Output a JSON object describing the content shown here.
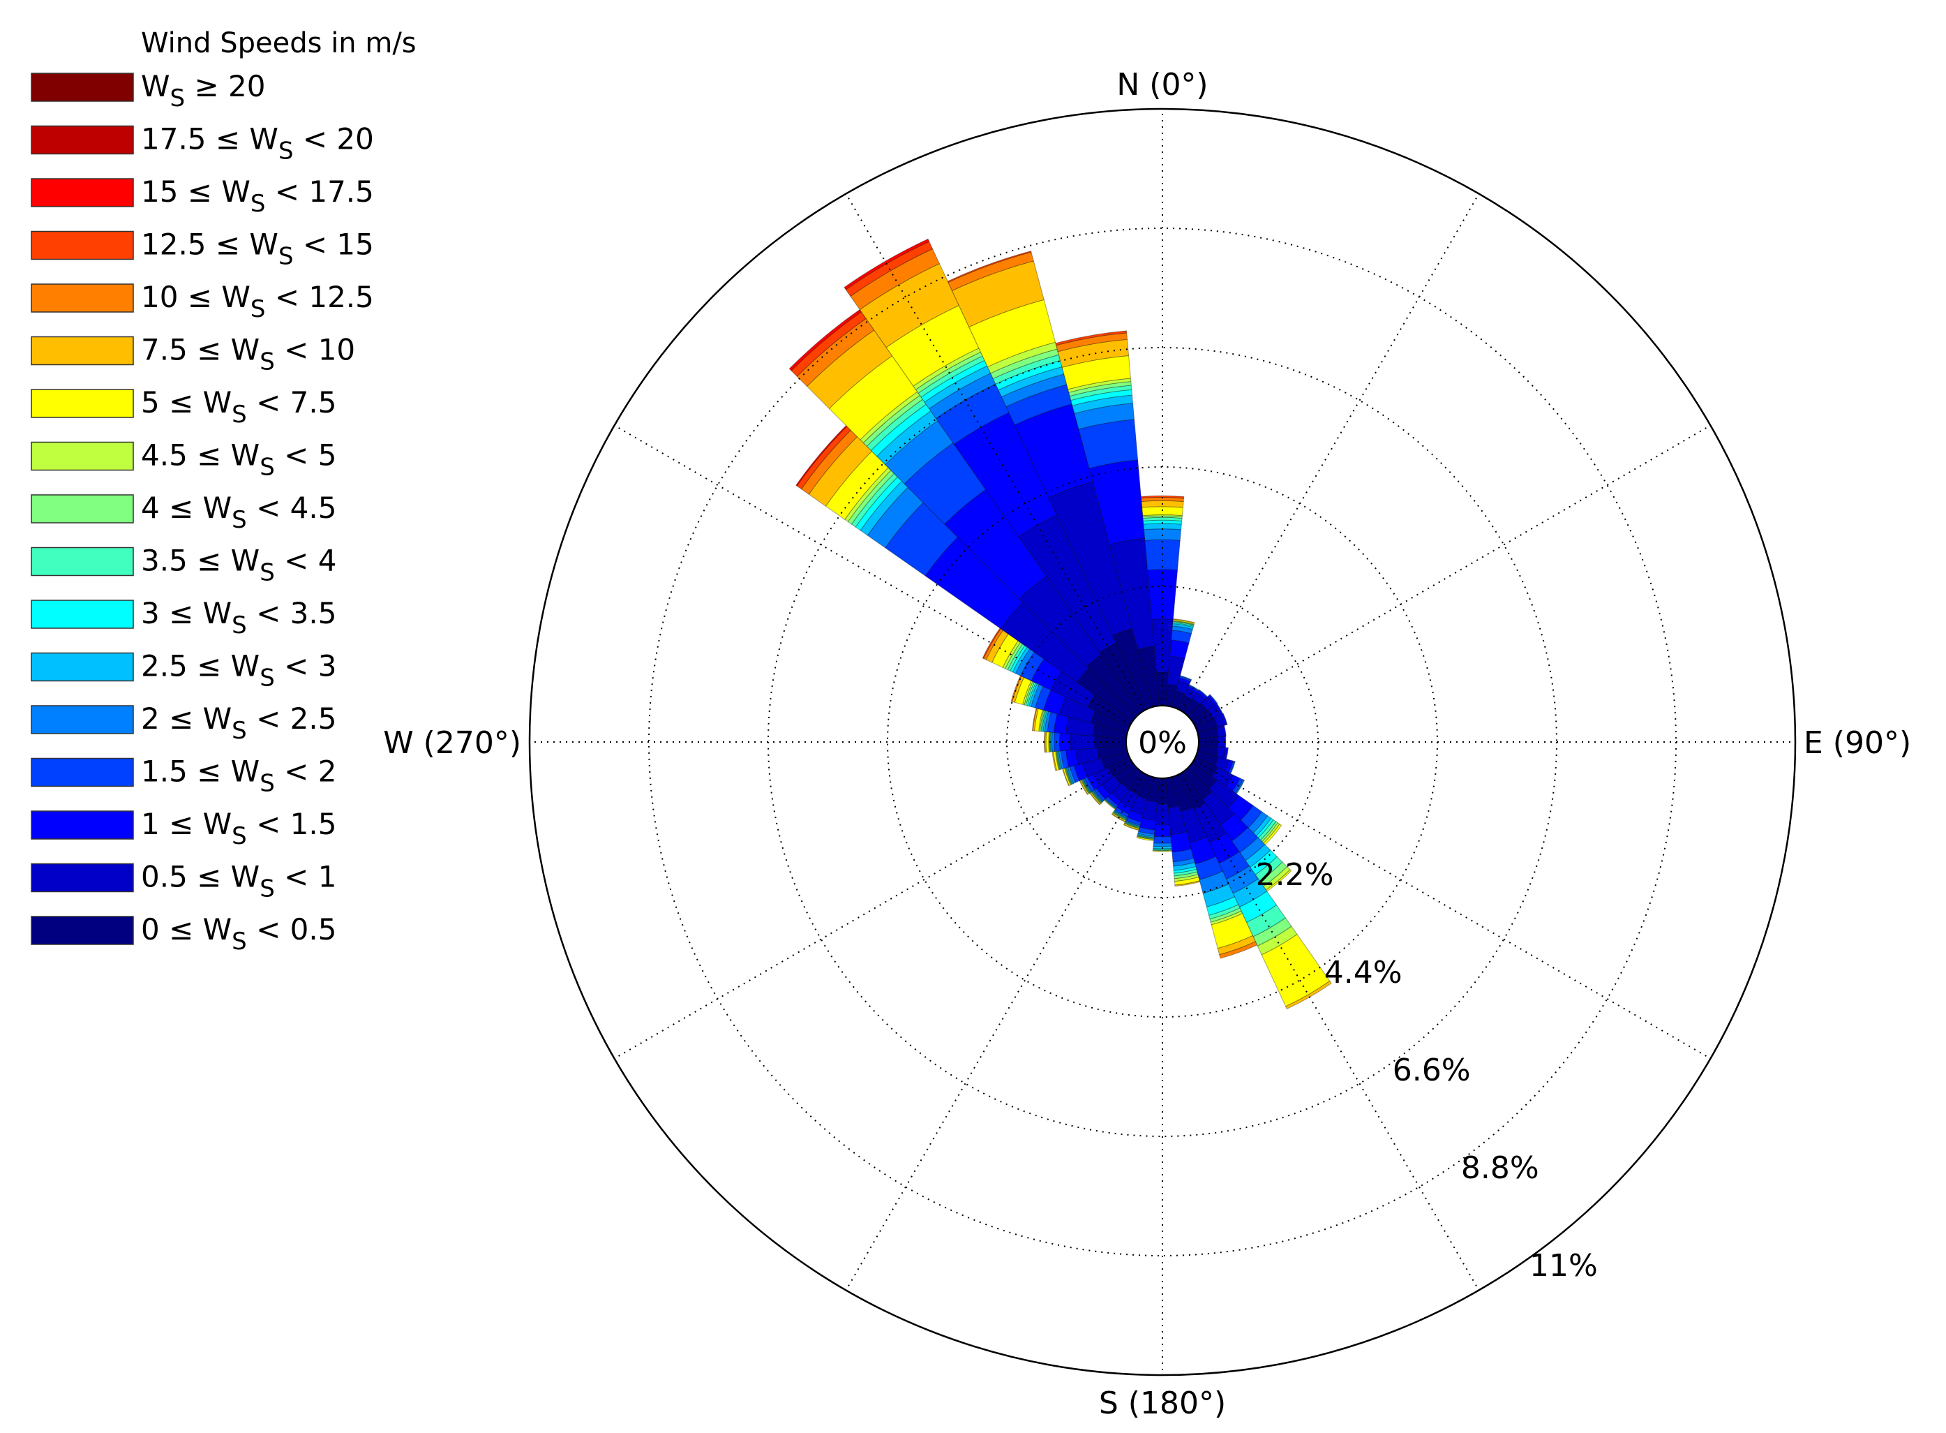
{
  "chart_data": {
    "type": "windrose",
    "legend_title": "Wind Speeds in m/s",
    "legend_placement": "top-left",
    "radial_unit": "%",
    "radial_max": 11,
    "rings": [
      2.2,
      4.4,
      6.6,
      8.8,
      11
    ],
    "ring_labels": [
      "2.2%",
      "4.4%",
      "6.6%",
      "8.8%",
      "11%"
    ],
    "center_label": "0%",
    "direction_labels": [
      {
        "angle": 0,
        "label": "N (0°)"
      },
      {
        "angle": 90,
        "label": "E (90°)"
      },
      {
        "angle": 180,
        "label": "S (180°)"
      },
      {
        "angle": 270,
        "label": "W (270°)"
      }
    ],
    "sector_width_deg": 10,
    "bins": [
      {
        "label": "0 ≤ W_S < 0.5",
        "color": "#000080"
      },
      {
        "label": "0.5 ≤ W_S < 1",
        "color": "#0000c8"
      },
      {
        "label": "1 ≤ W_S < 1.5",
        "color": "#0000ff"
      },
      {
        "label": "1.5 ≤ W_S < 2",
        "color": "#0040ff"
      },
      {
        "label": "2 ≤ W_S < 2.5",
        "color": "#0080ff"
      },
      {
        "label": "2.5 ≤ W_S < 3",
        "color": "#00c0ff"
      },
      {
        "label": "3 ≤ W_S < 3.5",
        "color": "#00ffff"
      },
      {
        "label": "3.5 ≤ W_S < 4",
        "color": "#40ffbf"
      },
      {
        "label": "4 ≤ W_S < 4.5",
        "color": "#80ff80"
      },
      {
        "label": "4.5 ≤ W_S < 5",
        "color": "#bfff40"
      },
      {
        "label": "5 ≤ W_S < 7.5",
        "color": "#ffff00"
      },
      {
        "label": "7.5 ≤ W_S < 10",
        "color": "#ffbf00"
      },
      {
        "label": "10 ≤ W_S < 12.5",
        "color": "#ff8000"
      },
      {
        "label": "12.5 ≤ W_S < 15",
        "color": "#ff4000"
      },
      {
        "label": "15 ≤ W_S < 17.5",
        "color": "#ff0000"
      },
      {
        "label": "17.5 ≤ W_S < 20",
        "color": "#bf0000"
      },
      {
        "label": "W_S ≥ 20",
        "color": "#800000"
      }
    ],
    "sectors": [
      {
        "direction": 0,
        "values": [
          0.62,
          0.98,
          0.91,
          0.55,
          0.2,
          0.1,
          0.06,
          0.05,
          0.03,
          0.02,
          0.15,
          0.11,
          0.06,
          0.03,
          0.0,
          0.0,
          0.0
        ]
      },
      {
        "direction": 10,
        "values": [
          0.4,
          0.52,
          0.3,
          0.18,
          0.08,
          0.04,
          0.02,
          0.02,
          0.01,
          0.01,
          0.02,
          0.01,
          0.0,
          0.0,
          0.0,
          0.0,
          0.0
        ]
      },
      {
        "direction": 20,
        "values": [
          0.31,
          0.19,
          0.06,
          0.03,
          0.01,
          0.0,
          0.0,
          0.0,
          0.0,
          0.0,
          0.0,
          0.0,
          0.0,
          0.0,
          0.0,
          0.0,
          0.0
        ]
      },
      {
        "direction": 30,
        "values": [
          0.28,
          0.14,
          0.05,
          0.02,
          0.01,
          0.0,
          0.0,
          0.0,
          0.0,
          0.0,
          0.0,
          0.0,
          0.0,
          0.0,
          0.0,
          0.0,
          0.0
        ]
      },
      {
        "direction": 40,
        "values": [
          0.3,
          0.14,
          0.05,
          0.02,
          0.0,
          0.0,
          0.0,
          0.0,
          0.0,
          0.0,
          0.0,
          0.0,
          0.0,
          0.0,
          0.0,
          0.0,
          0.0
        ]
      },
      {
        "direction": 50,
        "values": [
          0.34,
          0.16,
          0.05,
          0.02,
          0.0,
          0.0,
          0.0,
          0.0,
          0.0,
          0.0,
          0.0,
          0.0,
          0.0,
          0.0,
          0.0,
          0.0,
          0.0
        ]
      },
      {
        "direction": 60,
        "values": [
          0.36,
          0.15,
          0.04,
          0.01,
          0.0,
          0.0,
          0.0,
          0.0,
          0.0,
          0.0,
          0.0,
          0.0,
          0.0,
          0.0,
          0.0,
          0.0,
          0.0
        ]
      },
      {
        "direction": 70,
        "values": [
          0.38,
          0.14,
          0.04,
          0.01,
          0.0,
          0.0,
          0.0,
          0.0,
          0.0,
          0.0,
          0.0,
          0.0,
          0.0,
          0.0,
          0.0,
          0.0,
          0.0
        ]
      },
      {
        "direction": 80,
        "values": [
          0.36,
          0.12,
          0.03,
          0.0,
          0.0,
          0.0,
          0.0,
          0.0,
          0.0,
          0.0,
          0.0,
          0.0,
          0.0,
          0.0,
          0.0,
          0.0,
          0.0
        ]
      },
      {
        "direction": 90,
        "values": [
          0.35,
          0.12,
          0.03,
          0.0,
          0.0,
          0.0,
          0.0,
          0.0,
          0.0,
          0.0,
          0.0,
          0.0,
          0.0,
          0.0,
          0.0,
          0.0,
          0.0
        ]
      },
      {
        "direction": 100,
        "values": [
          0.36,
          0.14,
          0.04,
          0.01,
          0.0,
          0.0,
          0.0,
          0.0,
          0.0,
          0.0,
          0.0,
          0.0,
          0.0,
          0.0,
          0.0,
          0.0,
          0.0
        ]
      },
      {
        "direction": 110,
        "values": [
          0.4,
          0.2,
          0.08,
          0.03,
          0.01,
          0.0,
          0.0,
          0.0,
          0.0,
          0.0,
          0.0,
          0.0,
          0.0,
          0.0,
          0.0,
          0.0,
          0.0
        ]
      },
      {
        "direction": 120,
        "values": [
          0.45,
          0.32,
          0.14,
          0.06,
          0.02,
          0.01,
          0.0,
          0.0,
          0.0,
          0.0,
          0.0,
          0.0,
          0.0,
          0.0,
          0.0,
          0.0,
          0.0
        ]
      },
      {
        "direction": 130,
        "values": [
          0.55,
          0.5,
          0.32,
          0.2,
          0.13,
          0.08,
          0.05,
          0.06,
          0.04,
          0.04,
          0.04,
          0.0,
          0.0,
          0.0,
          0.0,
          0.0,
          0.0
        ]
      },
      {
        "direction": 140,
        "values": [
          0.62,
          0.58,
          0.36,
          0.26,
          0.18,
          0.15,
          0.17,
          0.14,
          0.12,
          0.08,
          0.03,
          0.0,
          0.0,
          0.0,
          0.0,
          0.0,
          0.0
        ]
      },
      {
        "direction": 150,
        "values": [
          0.7,
          0.68,
          0.42,
          0.32,
          0.29,
          0.28,
          0.31,
          0.29,
          0.19,
          0.18,
          1.05,
          0.05,
          0.0,
          0.0,
          0.0,
          0.0,
          0.0
        ]
      },
      {
        "direction": 160,
        "values": [
          0.66,
          0.6,
          0.4,
          0.3,
          0.26,
          0.26,
          0.16,
          0.07,
          0.06,
          0.05,
          0.45,
          0.12,
          0.07,
          0.0,
          0.0,
          0.0,
          0.0
        ]
      },
      {
        "direction": 170,
        "values": [
          0.55,
          0.5,
          0.32,
          0.18,
          0.08,
          0.08,
          0.05,
          0.05,
          0.05,
          0.05,
          0.07,
          0.02,
          0.0,
          0.0,
          0.0,
          0.0,
          0.0
        ]
      },
      {
        "direction": 180,
        "values": [
          0.48,
          0.38,
          0.22,
          0.12,
          0.06,
          0.04,
          0.02,
          0.01,
          0.01,
          0.0,
          0.01,
          0.0,
          0.0,
          0.0,
          0.0,
          0.0,
          0.0
        ]
      },
      {
        "direction": 190,
        "values": [
          0.44,
          0.34,
          0.18,
          0.08,
          0.04,
          0.02,
          0.01,
          0.01,
          0.01,
          0.01,
          0.02,
          0.0,
          0.0,
          0.0,
          0.0,
          0.0,
          0.0
        ]
      },
      {
        "direction": 200,
        "values": [
          0.42,
          0.3,
          0.14,
          0.06,
          0.02,
          0.01,
          0.01,
          0.01,
          0.01,
          0.01,
          0.02,
          0.01,
          0.0,
          0.0,
          0.0,
          0.0,
          0.0
        ]
      },
      {
        "direction": 210,
        "values": [
          0.4,
          0.28,
          0.12,
          0.06,
          0.02,
          0.01,
          0.01,
          0.01,
          0.01,
          0.01,
          0.02,
          0.01,
          0.0,
          0.0,
          0.0,
          0.0,
          0.0
        ]
      },
      {
        "direction": 220,
        "values": [
          0.4,
          0.26,
          0.1,
          0.04,
          0.02,
          0.01,
          0.01,
          0.0,
          0.0,
          0.0,
          0.01,
          0.0,
          0.0,
          0.0,
          0.0,
          0.0,
          0.0
        ]
      },
      {
        "direction": 230,
        "values": [
          0.42,
          0.28,
          0.12,
          0.05,
          0.02,
          0.01,
          0.01,
          0.01,
          0.01,
          0.01,
          0.02,
          0.01,
          0.0,
          0.0,
          0.0,
          0.0,
          0.0
        ]
      },
      {
        "direction": 240,
        "values": [
          0.44,
          0.3,
          0.12,
          0.06,
          0.02,
          0.01,
          0.01,
          0.01,
          0.01,
          0.01,
          0.02,
          0.01,
          0.0,
          0.0,
          0.0,
          0.0,
          0.0
        ]
      },
      {
        "direction": 250,
        "values": [
          0.5,
          0.36,
          0.16,
          0.08,
          0.04,
          0.02,
          0.01,
          0.01,
          0.01,
          0.01,
          0.03,
          0.01,
          0.0,
          0.0,
          0.0,
          0.0,
          0.0
        ]
      },
      {
        "direction": 260,
        "values": [
          0.54,
          0.4,
          0.18,
          0.09,
          0.04,
          0.02,
          0.01,
          0.01,
          0.01,
          0.01,
          0.04,
          0.02,
          0.0,
          0.0,
          0.0,
          0.0,
          0.0
        ]
      },
      {
        "direction": 270,
        "values": [
          0.58,
          0.45,
          0.2,
          0.1,
          0.04,
          0.02,
          0.01,
          0.01,
          0.01,
          0.01,
          0.05,
          0.02,
          0.01,
          0.0,
          0.0,
          0.0,
          0.0
        ]
      },
      {
        "direction": 280,
        "values": [
          0.62,
          0.5,
          0.22,
          0.12,
          0.05,
          0.03,
          0.02,
          0.02,
          0.02,
          0.02,
          0.08,
          0.03,
          0.01,
          0.0,
          0.0,
          0.0,
          0.0
        ]
      },
      {
        "direction": 290,
        "values": [
          0.7,
          0.6,
          0.3,
          0.16,
          0.08,
          0.04,
          0.03,
          0.03,
          0.03,
          0.03,
          0.15,
          0.05,
          0.02,
          0.0,
          0.0,
          0.0,
          0.0
        ]
      },
      {
        "direction": 300,
        "values": [
          0.85,
          0.75,
          0.4,
          0.22,
          0.1,
          0.06,
          0.05,
          0.05,
          0.05,
          0.05,
          0.22,
          0.12,
          0.05,
          0.02,
          0.0,
          0.0,
          0.0
        ]
      },
      {
        "direction": 310,
        "values": [
          1.25,
          1.72,
          1.7,
          0.9,
          0.4,
          0.16,
          0.11,
          0.09,
          0.08,
          0.07,
          0.43,
          0.38,
          0.17,
          0.1,
          0.02,
          0.0,
          0.0
        ]
      },
      {
        "direction": 320,
        "values": [
          1.3,
          1.76,
          1.95,
          1.05,
          0.5,
          0.22,
          0.15,
          0.11,
          0.09,
          0.08,
          0.81,
          0.58,
          0.26,
          0.15,
          0.05,
          0.0,
          0.0
        ]
      },
      {
        "direction": 330,
        "values": [
          1.35,
          2.6,
          2.08,
          0.58,
          0.22,
          0.15,
          0.11,
          0.09,
          0.08,
          0.08,
          0.87,
          0.85,
          0.3,
          0.15,
          0.05,
          0.0,
          0.0
        ]
      },
      {
        "direction": 340,
        "values": [
          1.5,
          2.8,
          1.48,
          0.37,
          0.2,
          0.14,
          0.12,
          0.11,
          0.11,
          0.13,
          0.81,
          0.74,
          0.17,
          0.02,
          0.0,
          0.0,
          0.0
        ]
      },
      {
        "direction": 350,
        "values": [
          1.1,
          2.0,
          1.45,
          0.75,
          0.3,
          0.15,
          0.1,
          0.08,
          0.07,
          0.06,
          0.42,
          0.3,
          0.12,
          0.04,
          0.0,
          0.0,
          0.0
        ]
      }
    ]
  }
}
